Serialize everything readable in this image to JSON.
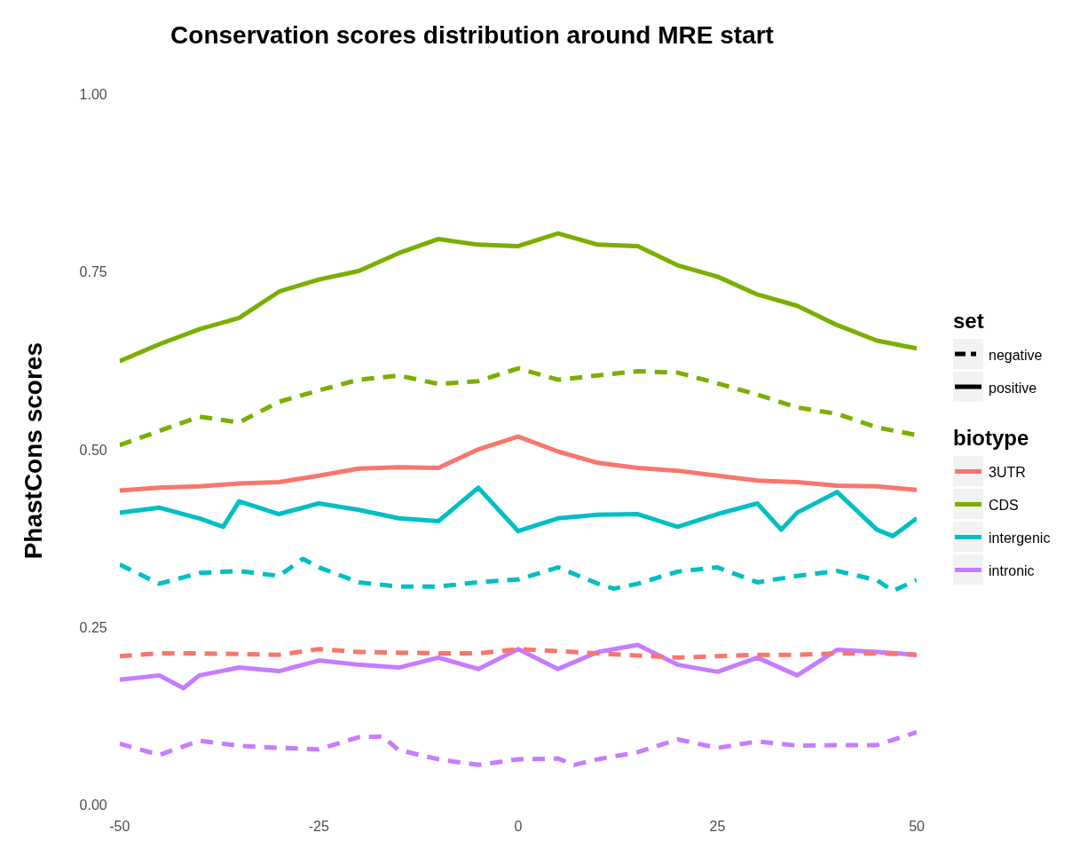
{
  "chart_data": {
    "type": "line",
    "title": "Conservation scores distribution around MRE start",
    "ylabel": "PhastCons scores",
    "legend": "right",
    "legend_title": "biotype",
    "annotations": [
      "set",
      "negative",
      "positive"
    ],
    "xlim": [
      -50,
      50
    ],
    "xticks": [
      -50,
      -25,
      0,
      25,
      50
    ],
    "ylim": [
      0,
      1
    ],
    "yticks": [
      {
        "value": 0,
        "label": "0.00"
      },
      {
        "value": 0.25,
        "label": "0.25"
      },
      {
        "value": 0.5,
        "label": "0.50"
      },
      {
        "value": 0.75,
        "label": "0.75"
      },
      {
        "value": 1,
        "label": "1.00"
      }
    ],
    "series": [
      {
        "color": "#f8766d",
        "line_style": "dashed",
        "x": [
          -50,
          -45,
          -40,
          -35,
          -30,
          -25,
          -20,
          -15,
          -10,
          -5,
          0,
          5,
          10,
          15,
          20,
          25,
          30,
          35,
          40,
          45,
          50
        ],
        "values": [
          0.211,
          0.215,
          0.215,
          0.214,
          0.213,
          0.221,
          0.217,
          0.216,
          0.215,
          0.215,
          0.221,
          0.218,
          0.215,
          0.212,
          0.209,
          0.211,
          0.213,
          0.213,
          0.215,
          0.215,
          0.213
        ]
      },
      {
        "color": "#7cae00",
        "line_style": "dashed",
        "x": [
          -50,
          -45,
          -40,
          -35,
          -30,
          -25,
          -20,
          -15,
          -10,
          -5,
          0,
          5,
          10,
          15,
          20,
          25,
          30,
          35,
          40,
          45,
          50
        ],
        "values": [
          0.508,
          0.528,
          0.548,
          0.54,
          0.569,
          0.585,
          0.6,
          0.606,
          0.594,
          0.598,
          0.616,
          0.6,
          0.606,
          0.612,
          0.61,
          0.595,
          0.579,
          0.561,
          0.552,
          0.533,
          0.522
        ]
      },
      {
        "color": "#00bfc4",
        "line_style": "dashed",
        "x": [
          -50,
          -45,
          -40,
          -35,
          -30,
          -27,
          -25,
          -20,
          -15,
          -10,
          -5,
          0,
          5,
          10,
          12,
          15,
          20,
          25,
          30,
          35,
          40,
          45,
          47,
          50
        ],
        "values": [
          0.34,
          0.313,
          0.328,
          0.331,
          0.324,
          0.348,
          0.336,
          0.315,
          0.309,
          0.309,
          0.315,
          0.319,
          0.336,
          0.313,
          0.306,
          0.313,
          0.33,
          0.336,
          0.315,
          0.324,
          0.331,
          0.318,
          0.303,
          0.318
        ]
      },
      {
        "color": "#c77cff",
        "line_style": "dashed",
        "x": [
          -50,
          -45,
          -40,
          -35,
          -30,
          -25,
          -20,
          -17,
          -15,
          -10,
          -5,
          0,
          5,
          7,
          10,
          15,
          20,
          25,
          30,
          35,
          40,
          45,
          50
        ],
        "values": [
          0.088,
          0.072,
          0.092,
          0.085,
          0.082,
          0.08,
          0.097,
          0.098,
          0.079,
          0.066,
          0.058,
          0.066,
          0.067,
          0.058,
          0.066,
          0.076,
          0.094,
          0.082,
          0.091,
          0.085,
          0.086,
          0.086,
          0.104
        ]
      },
      {
        "name": "3UTR",
        "color": "#f8766d",
        "line_style": "solid",
        "x": [
          -50,
          -45,
          -40,
          -35,
          -30,
          -25,
          -20,
          -15,
          -10,
          -5,
          0,
          5,
          10,
          15,
          20,
          25,
          30,
          35,
          40,
          45,
          50
        ],
        "values": [
          0.444,
          0.448,
          0.45,
          0.454,
          0.456,
          0.465,
          0.475,
          0.477,
          0.476,
          0.502,
          0.52,
          0.499,
          0.483,
          0.476,
          0.472,
          0.465,
          0.458,
          0.456,
          0.451,
          0.45,
          0.445
        ]
      },
      {
        "name": "CDS",
        "color": "#7cae00",
        "line_style": "solid",
        "x": [
          -50,
          -45,
          -40,
          -35,
          -30,
          -25,
          -20,
          -15,
          -10,
          -5,
          0,
          5,
          10,
          15,
          20,
          25,
          30,
          35,
          40,
          45,
          50
        ],
        "values": [
          0.626,
          0.65,
          0.671,
          0.687,
          0.724,
          0.741,
          0.753,
          0.778,
          0.798,
          0.79,
          0.788,
          0.806,
          0.79,
          0.788,
          0.761,
          0.745,
          0.72,
          0.704,
          0.677,
          0.655,
          0.644
        ]
      },
      {
        "name": "intergenic",
        "color": "#00bfc4",
        "line_style": "solid",
        "x": [
          -50,
          -45,
          -40,
          -37,
          -35,
          -30,
          -25,
          -20,
          -15,
          -10,
          -5,
          0,
          5,
          10,
          15,
          20,
          25,
          30,
          33,
          35,
          40,
          45,
          47,
          50
        ],
        "values": [
          0.413,
          0.42,
          0.405,
          0.393,
          0.429,
          0.411,
          0.426,
          0.417,
          0.405,
          0.401,
          0.448,
          0.387,
          0.405,
          0.41,
          0.411,
          0.393,
          0.411,
          0.426,
          0.389,
          0.413,
          0.442,
          0.389,
          0.38,
          0.405
        ]
      },
      {
        "name": "intronic",
        "color": "#c77cff",
        "line_style": "solid",
        "x": [
          -50,
          -45,
          -42,
          -40,
          -35,
          -30,
          -25,
          -20,
          -15,
          -10,
          -5,
          0,
          5,
          10,
          15,
          20,
          25,
          30,
          35,
          40,
          45,
          50
        ],
        "values": [
          0.178,
          0.184,
          0.166,
          0.184,
          0.195,
          0.19,
          0.205,
          0.199,
          0.195,
          0.209,
          0.193,
          0.221,
          0.193,
          0.217,
          0.227,
          0.199,
          0.189,
          0.209,
          0.184,
          0.22,
          0.217,
          0.213
        ]
      }
    ]
  }
}
